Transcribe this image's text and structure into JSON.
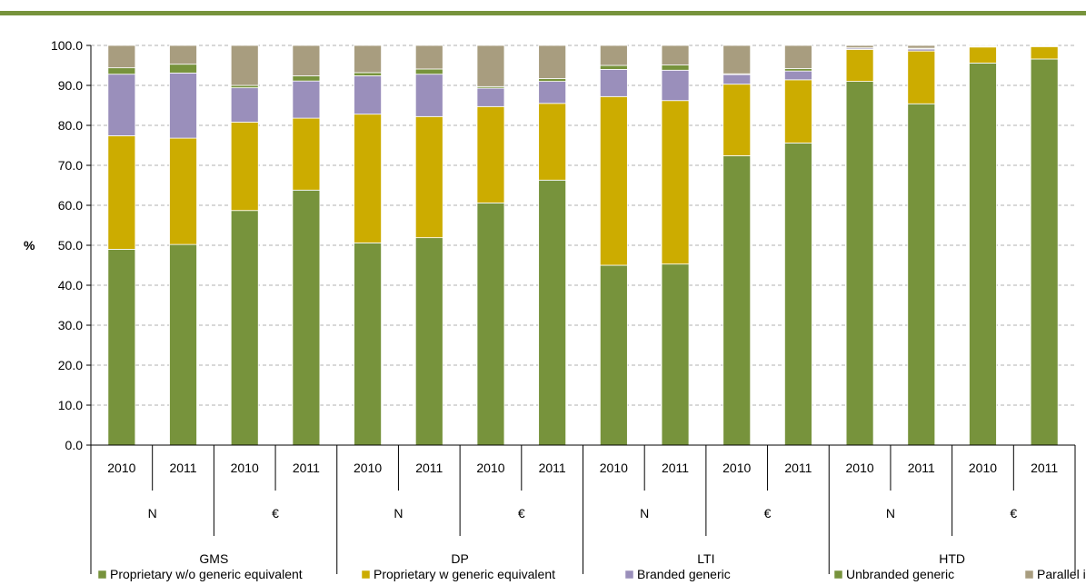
{
  "accent_color": "#77933C",
  "chart_data": {
    "type": "bar",
    "stacked": true,
    "ylabel": "%",
    "ylim": [
      0,
      100
    ],
    "y_ticks": [
      "0.0",
      "10.0",
      "20.0",
      "30.0",
      "40.0",
      "50.0",
      "60.0",
      "70.0",
      "80.0",
      "90.0",
      "100.0"
    ],
    "grid": true,
    "legend_position": "bottom",
    "categories": [
      {
        "year": "2010",
        "measure": "N",
        "group": "GMS"
      },
      {
        "year": "2011",
        "measure": "N",
        "group": "GMS"
      },
      {
        "year": "2010",
        "measure": "€",
        "group": "GMS"
      },
      {
        "year": "2011",
        "measure": "€",
        "group": "GMS"
      },
      {
        "year": "2010",
        "measure": "N",
        "group": "DP"
      },
      {
        "year": "2011",
        "measure": "N",
        "group": "DP"
      },
      {
        "year": "2010",
        "measure": "€",
        "group": "DP"
      },
      {
        "year": "2011",
        "measure": "€",
        "group": "DP"
      },
      {
        "year": "2010",
        "measure": "N",
        "group": "LTI"
      },
      {
        "year": "2011",
        "measure": "N",
        "group": "LTI"
      },
      {
        "year": "2010",
        "measure": "€",
        "group": "LTI"
      },
      {
        "year": "2011",
        "measure": "€",
        "group": "LTI"
      },
      {
        "year": "2010",
        "measure": "N",
        "group": "HTD"
      },
      {
        "year": "2011",
        "measure": "N",
        "group": "HTD"
      },
      {
        "year": "2010",
        "measure": "€",
        "group": "HTD"
      },
      {
        "year": "2011",
        "measure": "€",
        "group": "HTD"
      }
    ],
    "measure_labels": [
      "N",
      "€",
      "N",
      "€",
      "N",
      "€",
      "N",
      "€"
    ],
    "group_labels": [
      "GMS",
      "DP",
      "LTI",
      "HTD"
    ],
    "series": [
      {
        "name": "Proprietary w/o generic equivalent",
        "color": "#77933C",
        "values": [
          49.0,
          50.2,
          58.7,
          63.8,
          50.6,
          51.9,
          60.6,
          66.3,
          45.0,
          45.3,
          72.4,
          75.6,
          91.0,
          85.4,
          95.6,
          96.6
        ]
      },
      {
        "name": "Proprietary w generic equivalent",
        "color": "#CCAC00",
        "values": [
          28.4,
          26.6,
          22.1,
          18.0,
          32.2,
          30.3,
          24.1,
          19.2,
          42.2,
          40.9,
          17.9,
          15.8,
          8.0,
          13.2,
          4.0,
          3.1
        ]
      },
      {
        "name": "Branded generic",
        "color": "#9A8FBB",
        "values": [
          15.4,
          16.3,
          8.6,
          9.3,
          9.6,
          10.6,
          4.6,
          5.5,
          6.8,
          7.6,
          2.4,
          2.2,
          0.3,
          0.5,
          0.1,
          0.1
        ]
      },
      {
        "name": "Unbranded generic",
        "color": "#77933C",
        "values": [
          1.6,
          2.2,
          0.6,
          1.3,
          0.8,
          1.3,
          0.4,
          0.7,
          1.0,
          1.3,
          0.2,
          0.6,
          0.1,
          0.2,
          0.1,
          0.1
        ]
      },
      {
        "name": "Parallel import",
        "color": "#A89D7F",
        "values": [
          5.6,
          4.7,
          10.0,
          7.6,
          6.8,
          5.9,
          10.3,
          8.3,
          5.0,
          4.9,
          7.1,
          5.8,
          0.6,
          0.7,
          0.2,
          0.1
        ]
      }
    ]
  }
}
